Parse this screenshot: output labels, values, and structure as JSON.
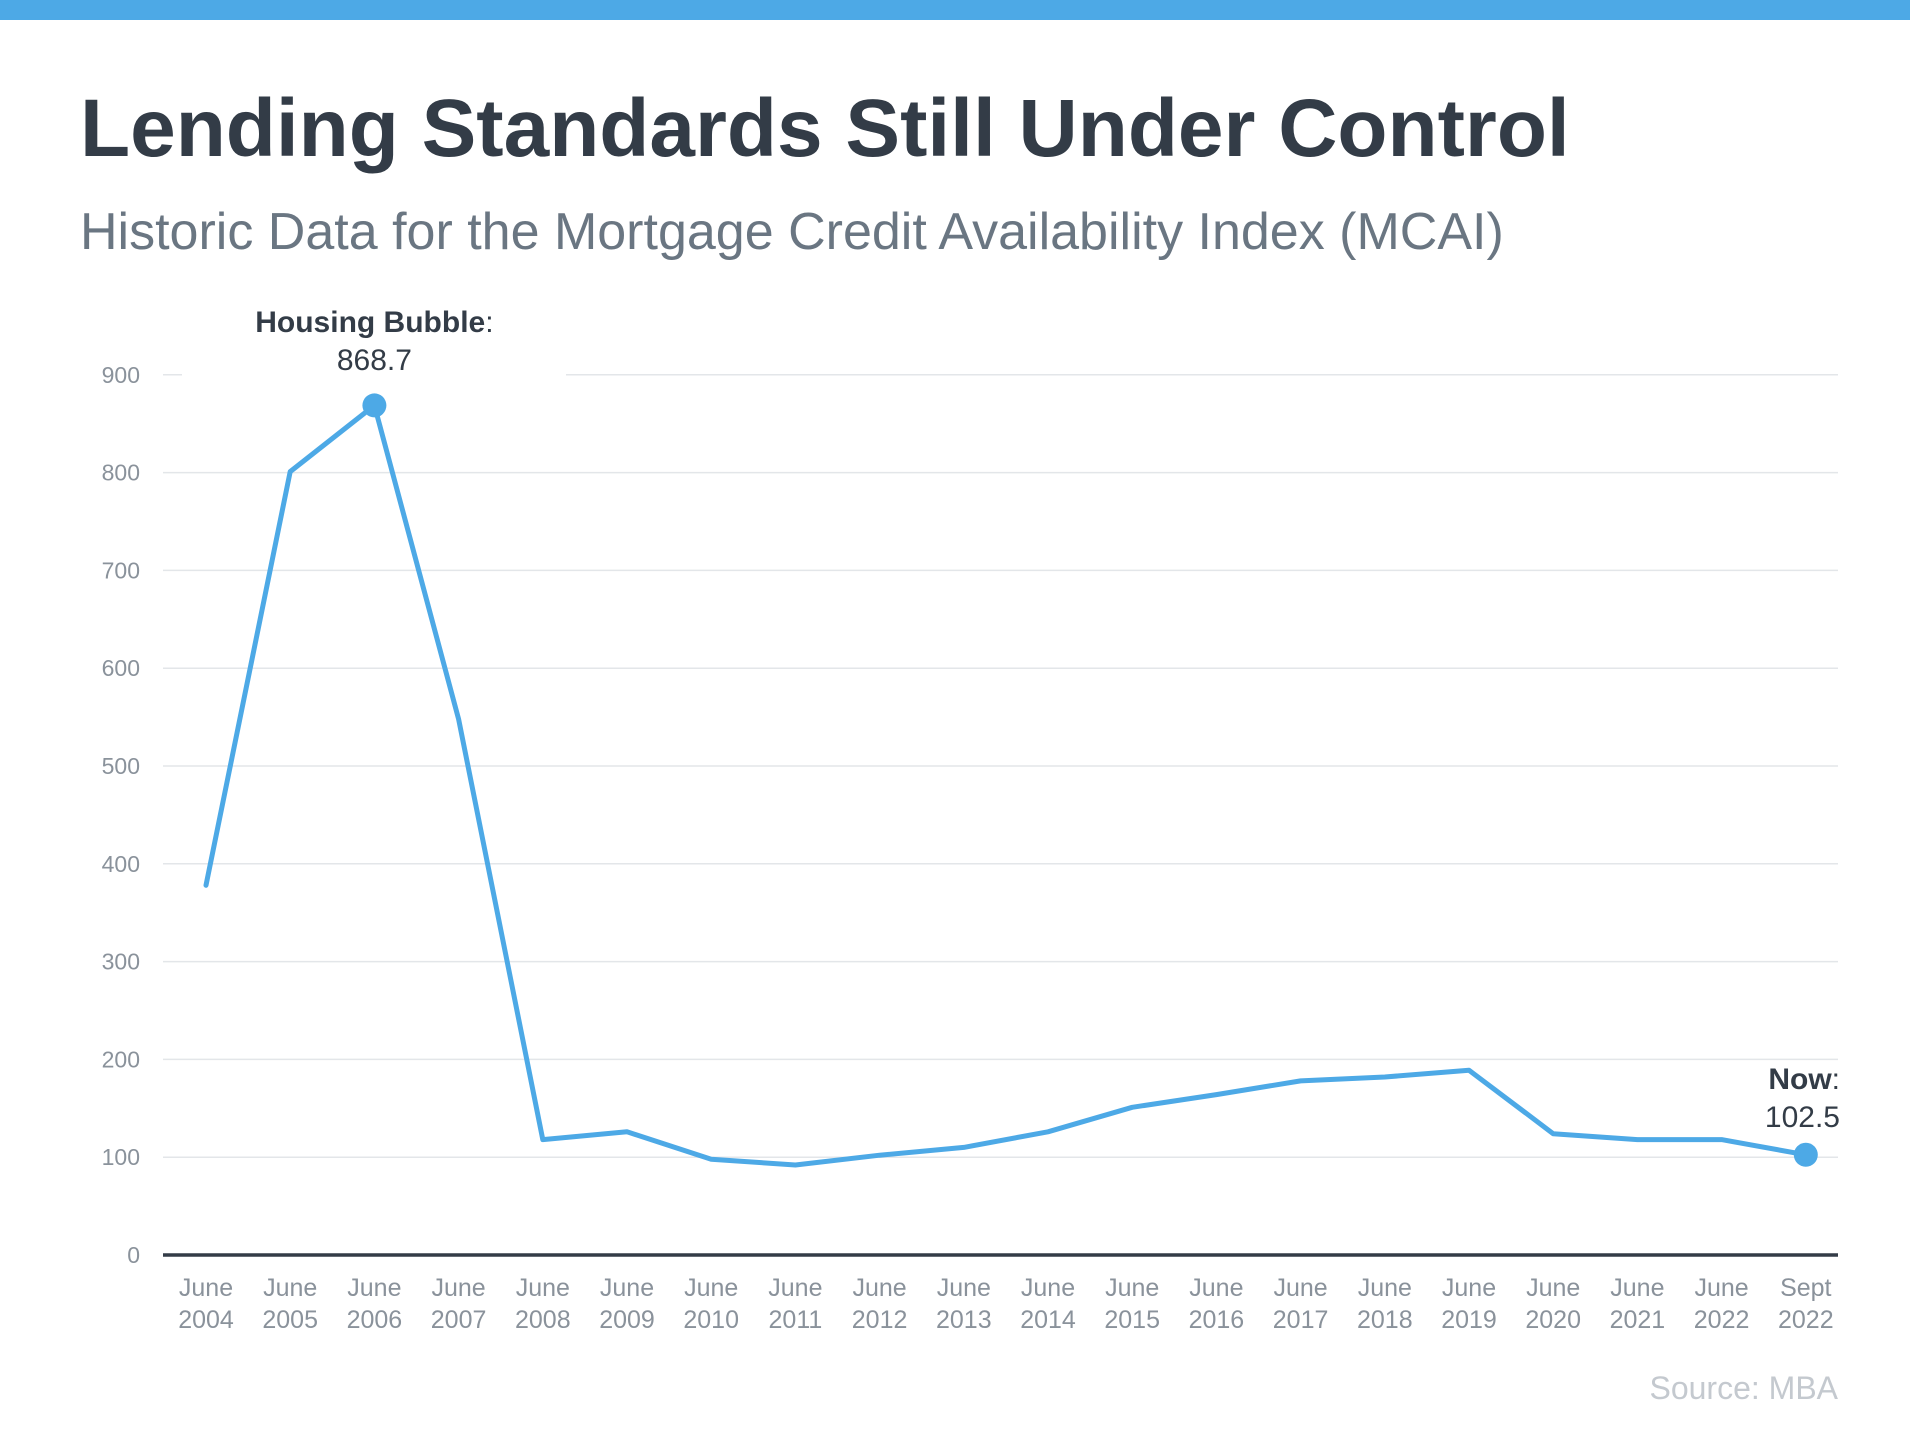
{
  "colors": {
    "accent": "#4da9e6",
    "title": "#333c47",
    "subtitle": "#6a7682",
    "axis_text": "#8a929b",
    "gridline": "#e3e6e9",
    "baseline": "#333c47",
    "source": "#c4c9cf"
  },
  "source": "Source: MBA",
  "chart_data": {
    "type": "line",
    "title": "Lending Standards Still Under Control",
    "subtitle": "Historic Data for the Mortgage Credit Availability Index (MCAI)",
    "xlabel": "",
    "ylabel": "",
    "ylim": [
      0,
      900
    ],
    "yticks": [
      0,
      100,
      200,
      300,
      400,
      500,
      600,
      700,
      800,
      900
    ],
    "grid": true,
    "categories": [
      [
        "June",
        "2004"
      ],
      [
        "June",
        "2005"
      ],
      [
        "June",
        "2006"
      ],
      [
        "June",
        "2007"
      ],
      [
        "June",
        "2008"
      ],
      [
        "June",
        "2009"
      ],
      [
        "June",
        "2010"
      ],
      [
        "June",
        "2011"
      ],
      [
        "June",
        "2012"
      ],
      [
        "June",
        "2013"
      ],
      [
        "June",
        "2014"
      ],
      [
        "June",
        "2015"
      ],
      [
        "June",
        "2016"
      ],
      [
        "June",
        "2017"
      ],
      [
        "June",
        "2018"
      ],
      [
        "June",
        "2019"
      ],
      [
        "June",
        "2020"
      ],
      [
        "June",
        "2021"
      ],
      [
        "June",
        "2022"
      ],
      [
        "Sept",
        "2022"
      ]
    ],
    "series": [
      {
        "values": [
          378,
          801,
          868.7,
          548,
          118,
          126,
          98,
          92,
          102,
          110,
          126,
          151,
          164,
          178,
          182,
          189,
          124,
          118,
          118,
          102.5
        ]
      }
    ],
    "annotations": [
      {
        "index": 2,
        "label": "Housing Bubble",
        "sep": ":",
        "value": "868.7"
      },
      {
        "index": 19,
        "label": "Now",
        "sep": ":",
        "value": "102.5"
      }
    ]
  }
}
